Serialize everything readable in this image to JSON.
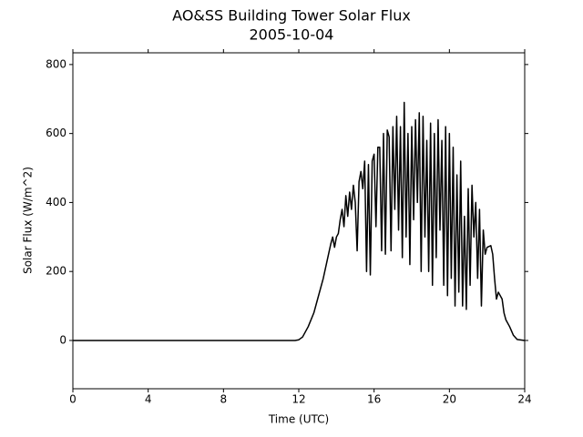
{
  "chart_data": {
    "type": "line",
    "title": "AO&SS Building Tower Solar Flux",
    "subtitle": "2005-10-04",
    "xlabel": "Time (UTC)",
    "ylabel": "Solar Flux (W/m^2)",
    "xlim": [
      0,
      24
    ],
    "xticks": [
      0,
      4,
      8,
      12,
      16,
      20,
      24
    ],
    "ylim": [
      -140,
      834
    ],
    "yticks": [
      0,
      200,
      400,
      600,
      800
    ],
    "series": [
      {
        "color": "#000000",
        "x": [
          0,
          11.8,
          12,
          12.2,
          12.5,
          12.8,
          13,
          13.3,
          13.5,
          13.7,
          13.8,
          13.9,
          14,
          14.1,
          14.2,
          14.3,
          14.4,
          14.5,
          14.6,
          14.7,
          14.8,
          14.9,
          15,
          15.1,
          15.2,
          15.3,
          15.4,
          15.5,
          15.6,
          15.7,
          15.8,
          15.9,
          16,
          16.1,
          16.2,
          16.3,
          16.4,
          16.5,
          16.6,
          16.7,
          16.8,
          16.9,
          17,
          17.1,
          17.2,
          17.3,
          17.4,
          17.5,
          17.6,
          17.7,
          17.8,
          17.9,
          18,
          18.1,
          18.2,
          18.3,
          18.4,
          18.5,
          18.6,
          18.7,
          18.8,
          18.9,
          19,
          19.1,
          19.2,
          19.3,
          19.4,
          19.5,
          19.6,
          19.7,
          19.8,
          19.9,
          20,
          20.1,
          20.2,
          20.3,
          20.4,
          20.5,
          20.6,
          20.7,
          20.8,
          20.9,
          21,
          21.1,
          21.2,
          21.3,
          21.4,
          21.5,
          21.6,
          21.7,
          21.8,
          21.9,
          22,
          22.2,
          22.3,
          22.4,
          22.5,
          22.6,
          22.8,
          22.9,
          23,
          23.2,
          23.4,
          23.6,
          24
        ],
        "values": [
          0,
          0,
          2,
          10,
          40,
          80,
          120,
          180,
          230,
          280,
          300,
          270,
          300,
          310,
          350,
          380,
          330,
          420,
          360,
          430,
          380,
          450,
          400,
          260,
          460,
          490,
          440,
          520,
          200,
          510,
          190,
          520,
          540,
          330,
          560,
          560,
          260,
          600,
          250,
          610,
          590,
          260,
          620,
          380,
          650,
          320,
          620,
          240,
          690,
          300,
          600,
          220,
          620,
          350,
          640,
          400,
          660,
          200,
          650,
          300,
          580,
          200,
          630,
          160,
          600,
          240,
          640,
          320,
          580,
          160,
          620,
          130,
          600,
          180,
          560,
          100,
          480,
          140,
          520,
          100,
          360,
          90,
          440,
          160,
          450,
          300,
          400,
          180,
          380,
          100,
          320,
          250,
          270,
          275,
          250,
          180,
          120,
          140,
          120,
          80,
          60,
          40,
          15,
          3,
          0
        ]
      }
    ]
  }
}
